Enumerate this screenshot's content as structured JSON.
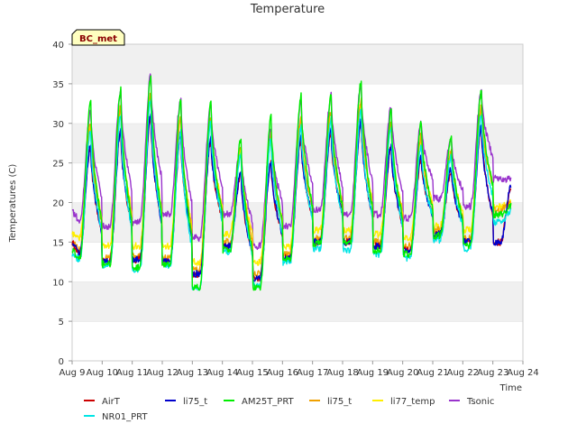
{
  "chart_data": {
    "type": "line",
    "title": "Temperature",
    "xlabel": "Time",
    "ylabel": "Temperatures (C)",
    "badge": "BC_met",
    "ylim": [
      0,
      40
    ],
    "yticks": [
      0,
      5,
      10,
      15,
      20,
      25,
      30,
      35,
      40
    ],
    "xlim": [
      "2020-08-09",
      "2020-08-24"
    ],
    "xticks": [
      "Aug 9",
      "Aug 10",
      "Aug 11",
      "Aug 12",
      "Aug 13",
      "Aug 14",
      "Aug 15",
      "Aug 16",
      "Aug 17",
      "Aug 18",
      "Aug 19",
      "Aug 20",
      "Aug 21",
      "Aug 22",
      "Aug 23",
      "Aug 24"
    ],
    "grid": "horizontal bands",
    "legend_position": "bottom",
    "daily_extremes_note": "values per day: [min, max]",
    "series": [
      {
        "name": "AirT",
        "color": "#cc0000",
        "mins": [
          13.5,
          12.5,
          12.8,
          12.5,
          11.0,
          14.5,
          10.5,
          13.0,
          15.0,
          15.0,
          14.5,
          14.0,
          16.0,
          15.0,
          15.0
        ],
        "maxs": [
          27.0,
          29.0,
          31.0,
          28.5,
          28.0,
          23.5,
          25.0,
          28.0,
          29.0,
          30.0,
          27.0,
          25.5,
          24.0,
          29.5,
          22.0
        ]
      },
      {
        "name": "NR01_PRT",
        "color": "#00e5e5",
        "mins": [
          12.8,
          12.0,
          11.5,
          12.0,
          9.3,
          13.8,
          9.5,
          12.5,
          14.2,
          14.0,
          13.5,
          13.0,
          15.3,
          14.2,
          17.5
        ],
        "maxs": [
          29.0,
          31.0,
          33.0,
          29.0,
          30.0,
          26.0,
          28.0,
          29.5,
          30.5,
          31.5,
          29.5,
          27.0,
          26.0,
          31.0,
          19.0
        ]
      },
      {
        "name": "li75_t",
        "color": "#0000cc",
        "mins": [
          13.5,
          12.5,
          12.8,
          12.5,
          11.0,
          14.5,
          10.5,
          13.0,
          15.0,
          15.0,
          14.5,
          14.0,
          16.0,
          15.0,
          15.0
        ],
        "maxs": [
          27.2,
          29.2,
          31.2,
          28.7,
          28.2,
          23.7,
          25.2,
          28.2,
          29.2,
          30.2,
          27.2,
          25.7,
          24.2,
          29.7,
          22.0
        ]
      },
      {
        "name": "AM25T_PRT",
        "color": "#00ee00",
        "mins": [
          13.0,
          12.2,
          11.8,
          12.2,
          9.3,
          14.0,
          9.2,
          12.8,
          14.8,
          14.8,
          14.0,
          13.5,
          15.8,
          14.5,
          18.5
        ],
        "maxs": [
          32.5,
          34.2,
          36.0,
          33.0,
          32.5,
          28.0,
          31.0,
          33.5,
          33.5,
          35.3,
          31.5,
          30.0,
          28.0,
          34.0,
          19.5
        ]
      },
      {
        "name": "li75_t",
        "color": "#f0a000",
        "mins": [
          14.0,
          13.0,
          13.2,
          13.0,
          11.5,
          15.0,
          11.0,
          13.5,
          15.5,
          15.5,
          15.0,
          14.5,
          16.5,
          15.5,
          19.0
        ],
        "maxs": [
          30.0,
          32.0,
          33.5,
          31.0,
          31.0,
          27.0,
          28.5,
          30.5,
          31.5,
          33.0,
          30.0,
          28.5,
          26.5,
          32.0,
          20.0
        ]
      },
      {
        "name": "li77_temp",
        "color": "#ffee00",
        "mins": [
          15.5,
          14.5,
          14.5,
          14.5,
          12.5,
          16.0,
          12.5,
          14.5,
          16.5,
          16.5,
          16.0,
          15.5,
          17.0,
          16.5,
          19.5
        ],
        "maxs": [
          29.5,
          31.5,
          33.0,
          30.5,
          30.5,
          26.5,
          28.0,
          30.0,
          31.0,
          32.5,
          29.5,
          28.0,
          26.0,
          31.5,
          20.0
        ]
      },
      {
        "name": "Tsonic",
        "color": "#9933cc",
        "mins": [
          17.5,
          17.0,
          17.5,
          18.5,
          15.5,
          18.5,
          14.5,
          17.0,
          19.0,
          18.5,
          18.5,
          18.0,
          20.5,
          19.5,
          23.0
        ],
        "maxs": [
          31.5,
          34.0,
          36.0,
          33.0,
          32.5,
          27.0,
          29.0,
          32.5,
          33.5,
          35.0,
          32.0,
          30.0,
          28.0,
          34.0,
          23.0
        ]
      }
    ],
    "start_value": {
      "AirT": 15.0,
      "NR01_PRT": 13.5,
      "li75_t": 15.0,
      "AM25T_PRT": 14.0,
      "li77_temp": 16.0,
      "Tsonic": 19.0
    },
    "end_day": "2020-08-23",
    "end_fraction": 0.6
  }
}
